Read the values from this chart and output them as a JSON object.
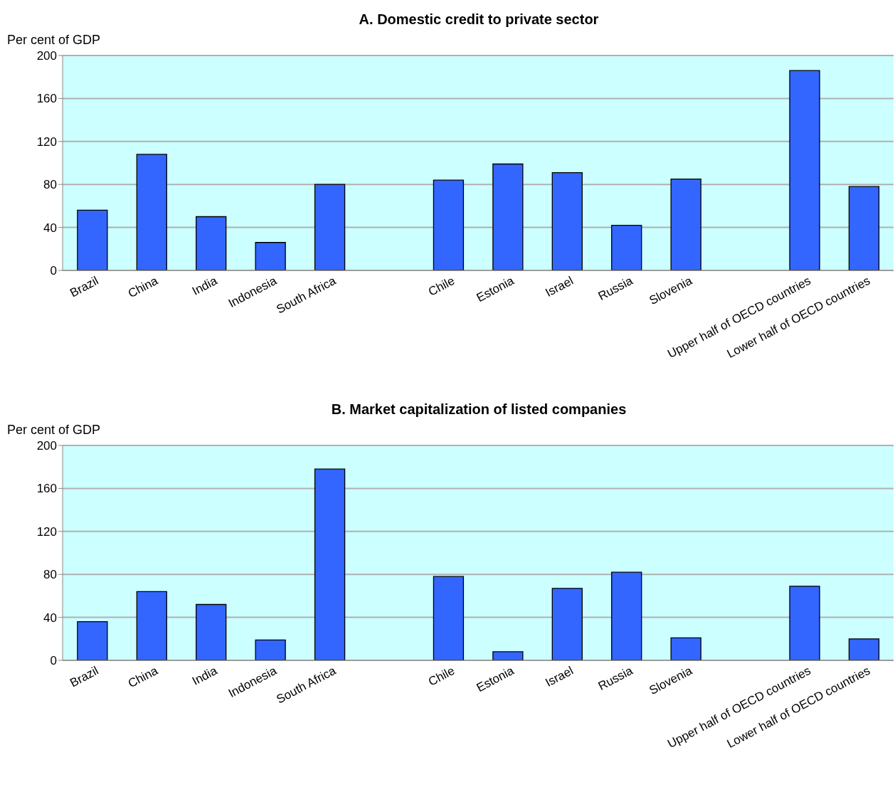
{
  "chart_data": [
    {
      "type": "bar",
      "title": "A. Domestic credit to private sector",
      "ylabel": "Per cent of GDP",
      "categories": [
        "Brazil",
        "China",
        "India",
        "Indonesia",
        "South Africa",
        null,
        "Chile",
        "Estonia",
        "Israel",
        "Russia",
        "Slovenia",
        null,
        "Upper half of OECD countries",
        "Lower half of OECD countries"
      ],
      "values": [
        56,
        108,
        50,
        26,
        80,
        null,
        84,
        99,
        91,
        42,
        85,
        null,
        186,
        78
      ],
      "color": "#3366ff",
      "ylim": [
        0,
        200
      ],
      "yticks": [
        0,
        40,
        80,
        120,
        160,
        200
      ],
      "grid": "y"
    },
    {
      "type": "bar",
      "title": "B. Market capitalization of listed companies",
      "ylabel": "Per cent of GDP",
      "categories": [
        "Brazil",
        "China",
        "India",
        "Indonesia",
        "South Africa",
        null,
        "Chile",
        "Estonia",
        "Israel",
        "Russia",
        "Slovenia",
        null,
        "Upper half of OECD countries",
        "Lower half of OECD countries"
      ],
      "values": [
        36,
        64,
        52,
        19,
        178,
        null,
        78,
        8,
        67,
        82,
        21,
        null,
        69,
        20
      ],
      "color": "#3366ff",
      "ylim": [
        0,
        200
      ],
      "yticks": [
        0,
        40,
        80,
        120,
        160,
        200
      ],
      "grid": "y"
    }
  ]
}
